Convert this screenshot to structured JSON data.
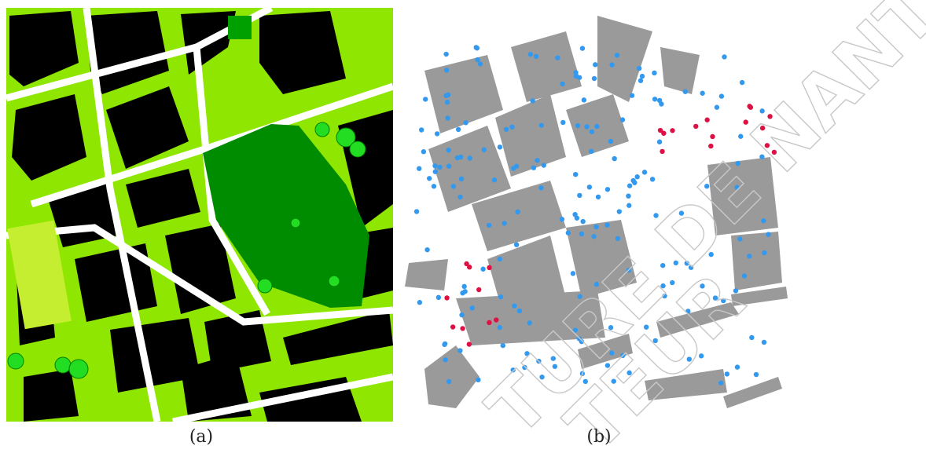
{
  "figure": {
    "panels": [
      {
        "caption": "(a)"
      },
      {
        "caption": "(b)"
      }
    ],
    "watermark": [
      "TURE DE NANTES",
      "TEUR"
    ]
  }
}
